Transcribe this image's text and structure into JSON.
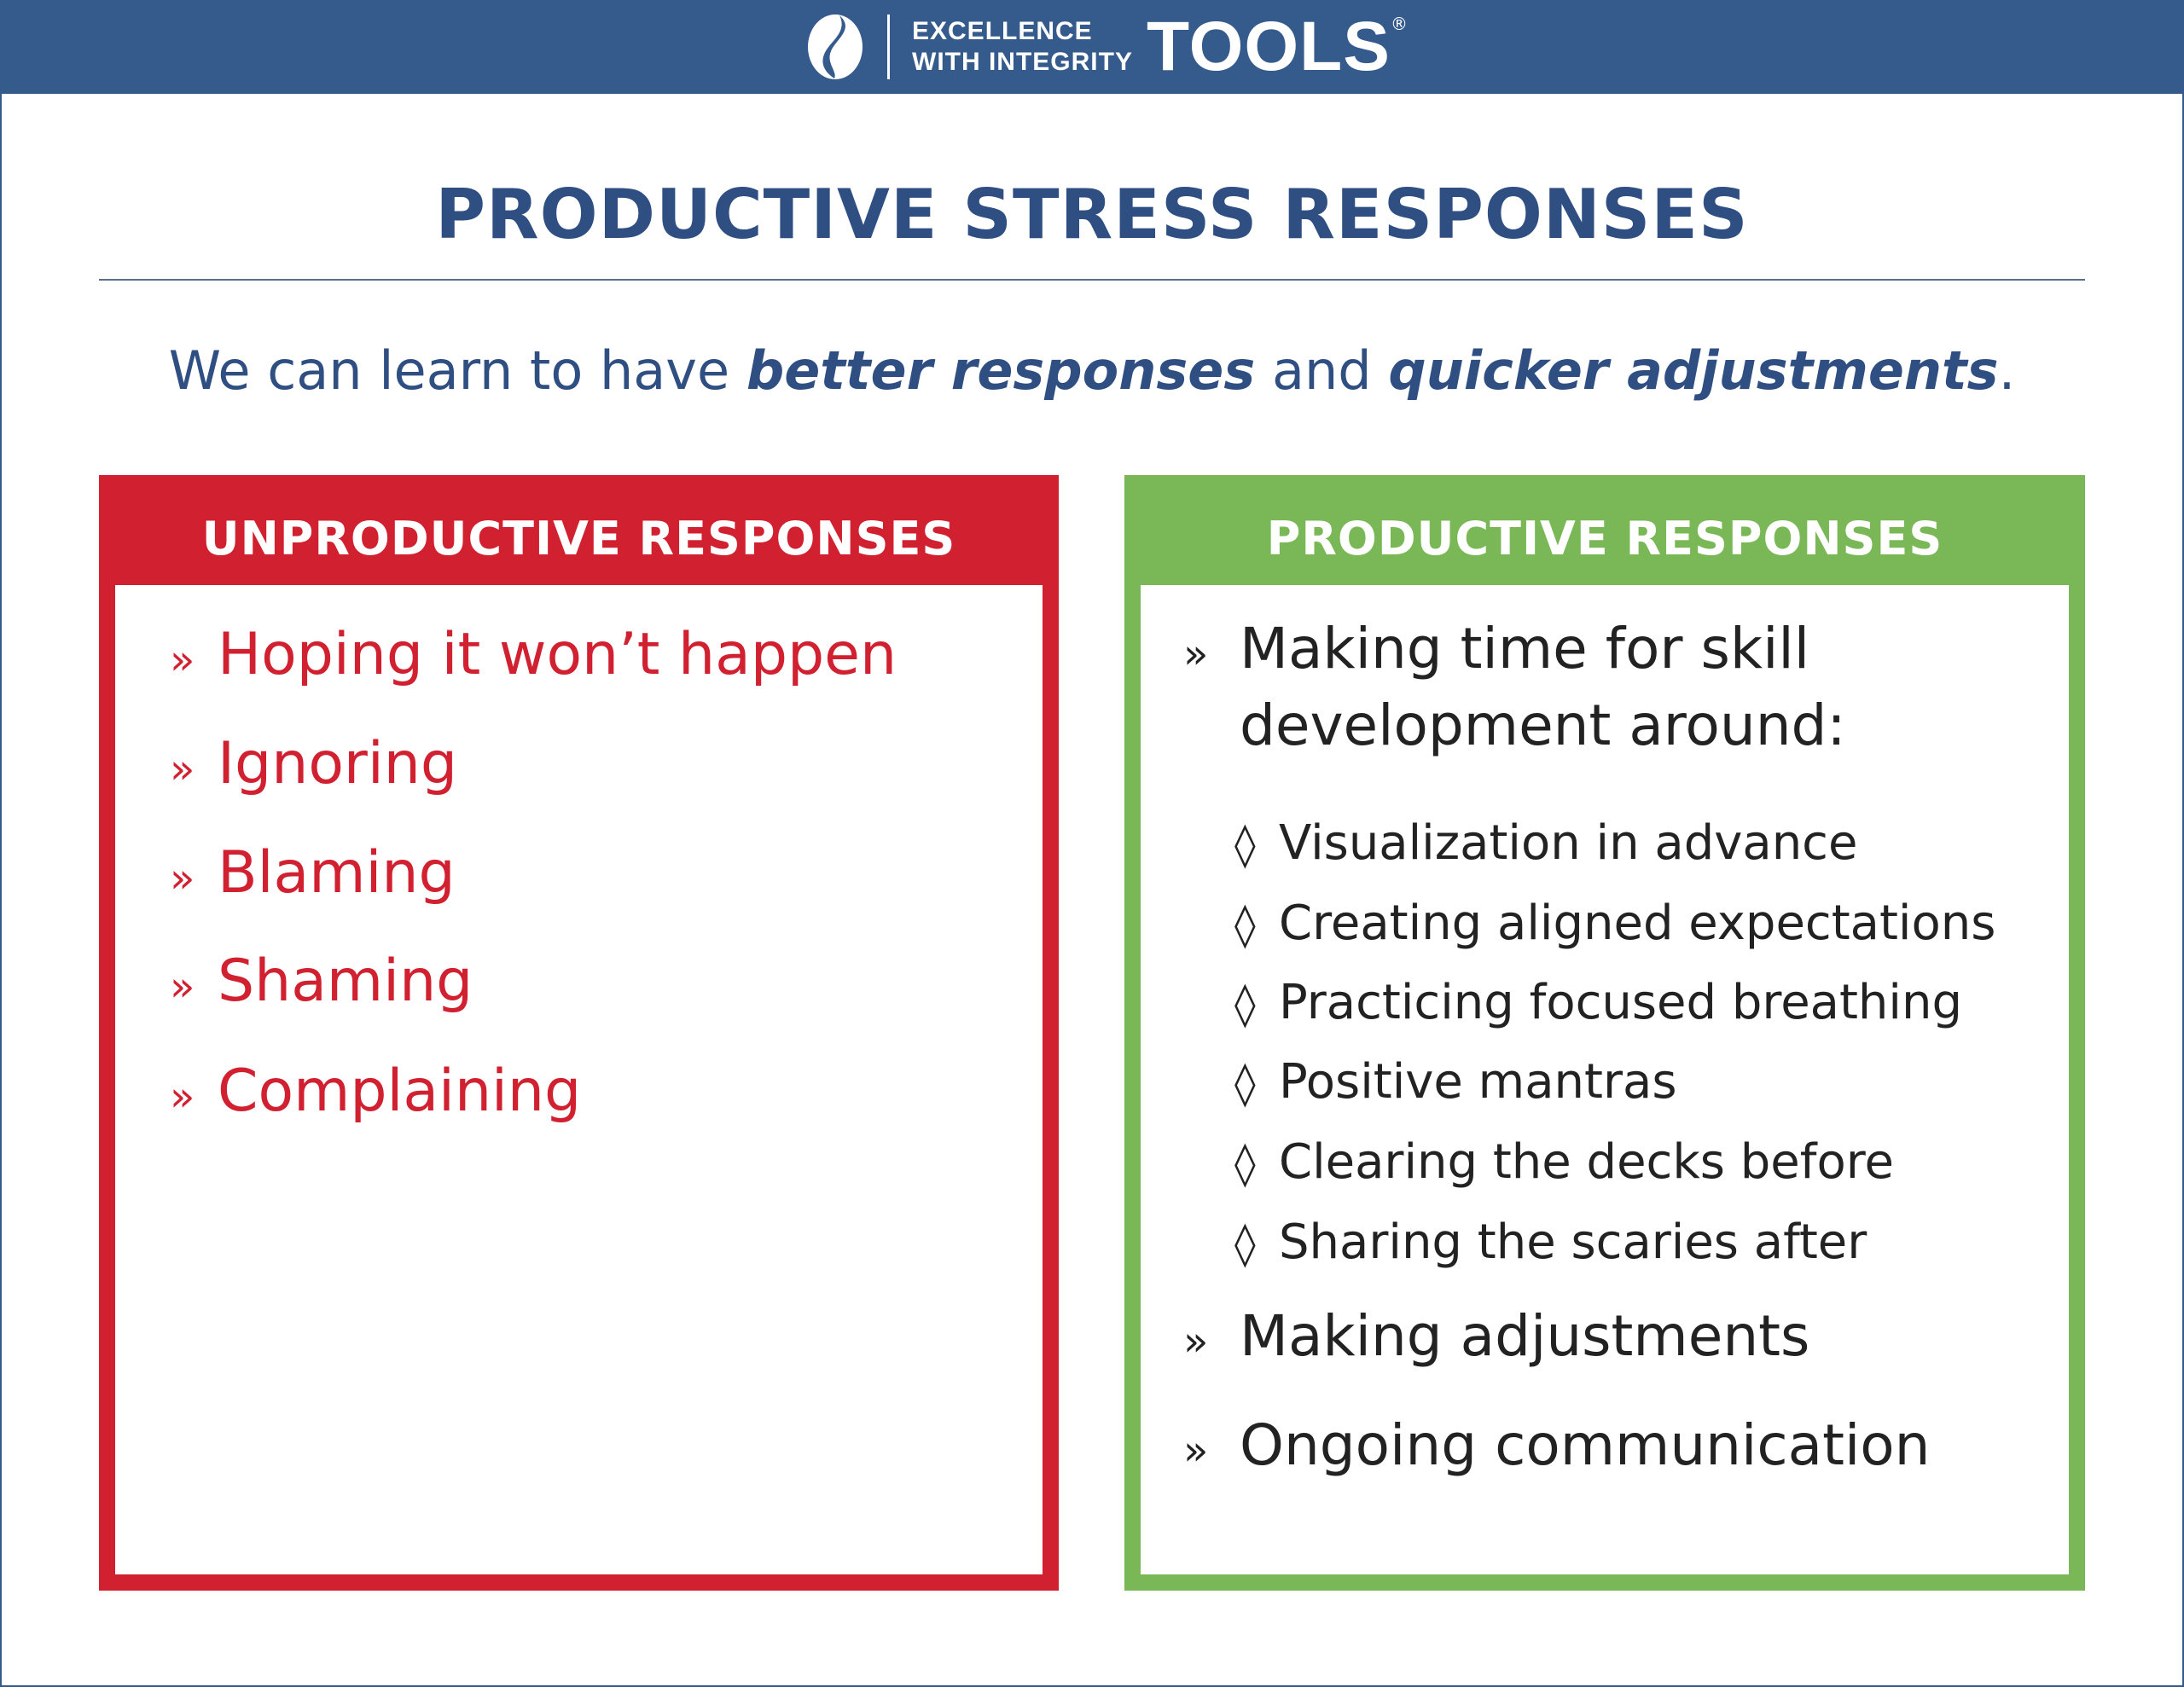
{
  "brand": {
    "tagline_line1": "EXCELLENCE",
    "tagline_line2": "WITH INTEGRITY",
    "name": "TOOLS",
    "reg": "®",
    "color": "#355a8c"
  },
  "title": "PRODUCTIVE STRESS RESPONSES",
  "subtitle": {
    "part1": "We can learn to have ",
    "em1": "better responses",
    "part2": " and ",
    "em2": "quicker adjustments",
    "part3": "."
  },
  "unproductive": {
    "heading": "UNPRODUCTIVE RESPONSES",
    "color": "#d12030",
    "items": [
      "Hoping it won’t happen",
      "Ignoring",
      "Blaming",
      "Shaming",
      "Complaining"
    ]
  },
  "productive": {
    "heading": "PRODUCTIVE RESPONSES",
    "color": "#7ab857",
    "first_line1": "Making time for skill",
    "first_line2": "development around:",
    "subitems": [
      "Visualization in advance",
      "Creating aligned expectations",
      "Practicing focused breathing",
      "Positive mantras",
      "Clearing the decks before",
      "Sharing the scaries after"
    ],
    "items": [
      "Making adjustments",
      "Ongoing communication"
    ]
  },
  "icons": {
    "bullet": "»",
    "sub_bullet": "◊"
  }
}
